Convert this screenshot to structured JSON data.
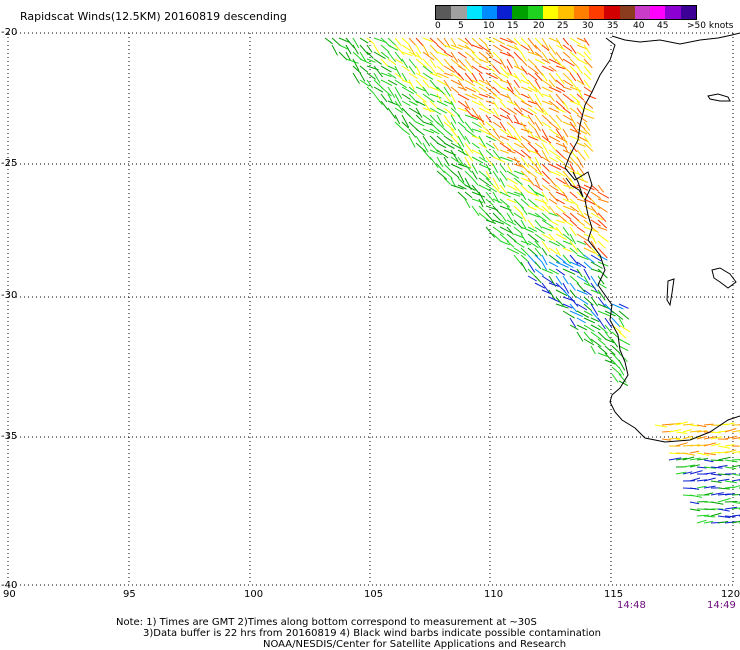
{
  "title": "Rapidscat Winds(12.5KM) 20160819 descending",
  "legend": {
    "labels": [
      "0",
      "5",
      "10",
      "15",
      "20",
      "25",
      "30",
      "35",
      "40",
      "45",
      ">50 knots"
    ],
    "colors": [
      "#5a5a5a",
      "#a0a0a0",
      "#00e5ff",
      "#008cff",
      "#0a1ed2",
      "#00a000",
      "#1fd21f",
      "#ffff00",
      "#ffc000",
      "#ff8000",
      "#ff3c00",
      "#d20000",
      "#8b3c1e",
      "#c83cc8",
      "#ff00ff",
      "#8c00d2",
      "#3c0096"
    ]
  },
  "map": {
    "lat_labels": [
      "-20",
      "-25",
      "-30",
      "-35",
      "-40"
    ],
    "lon_labels": [
      "90",
      "95",
      "100",
      "105",
      "110",
      "115",
      "120"
    ],
    "time_labels": [
      "14:48",
      "14:49"
    ]
  },
  "notes": {
    "line1": "Note: 1) Times are GMT 2)Times along bottom correspond to measurement at ~30S",
    "line2": "3)Data buffer is 22 hrs from 20160819 4) Black wind barbs indicate possible contamination",
    "line3": "NOAA/NESDIS/Center for Satellite Applications and Research"
  }
}
